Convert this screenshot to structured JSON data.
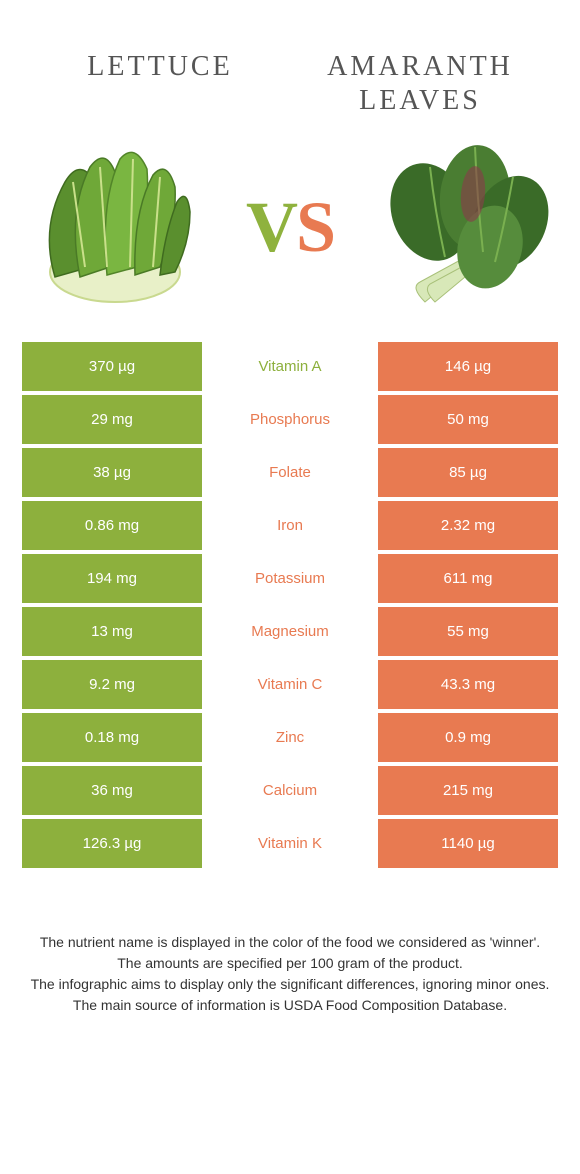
{
  "colors": {
    "green": "#8db03d",
    "orange": "#e87a51",
    "text_green": "#8db03d",
    "text_orange": "#e87a51",
    "title": "#555555",
    "footnote": "#333333",
    "background": "#ffffff"
  },
  "header": {
    "left_title": "LETTUCE",
    "right_title": "AMARANTH LEAVES",
    "vs_v": "V",
    "vs_s": "S"
  },
  "rows": [
    {
      "left": "370 µg",
      "label": "Vitamin A",
      "right": "146 µg",
      "winner": "left"
    },
    {
      "left": "29 mg",
      "label": "Phosphorus",
      "right": "50 mg",
      "winner": "right"
    },
    {
      "left": "38 µg",
      "label": "Folate",
      "right": "85 µg",
      "winner": "right"
    },
    {
      "left": "0.86 mg",
      "label": "Iron",
      "right": "2.32 mg",
      "winner": "right"
    },
    {
      "left": "194 mg",
      "label": "Potassium",
      "right": "611 mg",
      "winner": "right"
    },
    {
      "left": "13 mg",
      "label": "Magnesium",
      "right": "55 mg",
      "winner": "right"
    },
    {
      "left": "9.2 mg",
      "label": "Vitamin C",
      "right": "43.3 mg",
      "winner": "right"
    },
    {
      "left": "0.18 mg",
      "label": "Zinc",
      "right": "0.9 mg",
      "winner": "right"
    },
    {
      "left": "36 mg",
      "label": "Calcium",
      "right": "215 mg",
      "winner": "right"
    },
    {
      "left": "126.3 µg",
      "label": "Vitamin K",
      "right": "1140 µg",
      "winner": "right"
    }
  ],
  "footnotes": {
    "line1": "The nutrient name is displayed in the color of the food we considered as 'winner'.",
    "line2": "The amounts are specified per 100 gram of the product.",
    "line3": "The infographic aims to display only the significant differences, ignoring minor ones.",
    "line4": "The main source of information is USDA Food Composition Database."
  }
}
